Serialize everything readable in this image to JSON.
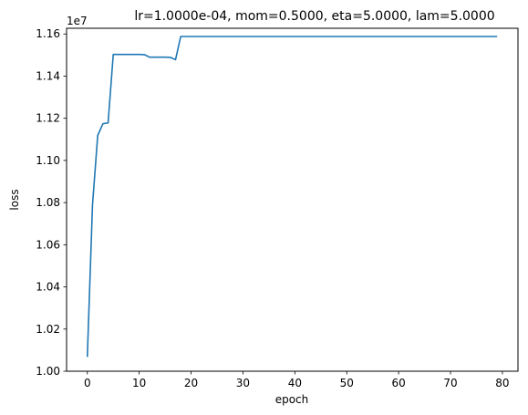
{
  "chart_data": {
    "type": "line",
    "title": "lr=1.0000e-04, mom=0.5000, eta=5.0000, lam=5.0000",
    "xlabel": "epoch",
    "ylabel": "loss",
    "y_offset_label": "1e7",
    "xlim": [
      -4,
      83
    ],
    "ylim": [
      1.0,
      1.1627
    ],
    "x_ticks": [
      0,
      10,
      20,
      30,
      40,
      50,
      60,
      70,
      80
    ],
    "y_ticks": [
      1.0,
      1.02,
      1.04,
      1.06,
      1.08,
      1.1,
      1.12,
      1.14,
      1.16
    ],
    "y_tick_labels": [
      "1.00",
      "1.02",
      "1.04",
      "1.06",
      "1.08",
      "1.10",
      "1.12",
      "1.14",
      "1.16"
    ],
    "grid": false,
    "colors": {
      "line": "#1f77b4"
    },
    "series": [
      {
        "x": [
          0,
          1,
          2,
          3,
          4,
          5,
          6,
          7,
          8,
          9,
          10,
          11,
          12,
          13,
          14,
          15,
          16,
          17,
          18,
          19,
          20,
          21,
          22,
          23,
          24,
          25,
          26,
          27,
          28,
          29,
          30,
          31,
          32,
          33,
          34,
          35,
          36,
          37,
          38,
          39,
          40,
          41,
          42,
          43,
          44,
          45,
          46,
          47,
          48,
          49,
          50,
          51,
          52,
          53,
          54,
          55,
          56,
          57,
          58,
          59,
          60,
          61,
          62,
          63,
          64,
          65,
          66,
          67,
          68,
          69,
          70,
          71,
          72,
          73,
          74,
          75,
          76,
          77,
          78,
          79
        ],
        "values": [
          1.0068,
          1.079,
          1.1118,
          1.1174,
          1.1178,
          1.1503,
          1.1503,
          1.1503,
          1.1503,
          1.1503,
          1.1503,
          1.1502,
          1.149,
          1.149,
          1.149,
          1.149,
          1.1489,
          1.1478,
          1.1588,
          1.1588,
          1.1588,
          1.1588,
          1.1588,
          1.1588,
          1.1588,
          1.1588,
          1.1588,
          1.1588,
          1.1588,
          1.1588,
          1.1588,
          1.1588,
          1.1588,
          1.1588,
          1.1588,
          1.1588,
          1.1588,
          1.1588,
          1.1588,
          1.1588,
          1.1588,
          1.1588,
          1.1588,
          1.1588,
          1.1588,
          1.1588,
          1.1588,
          1.1588,
          1.1588,
          1.1588,
          1.1588,
          1.1588,
          1.1588,
          1.1588,
          1.1588,
          1.1588,
          1.1588,
          1.1588,
          1.1588,
          1.1588,
          1.1588,
          1.1588,
          1.1588,
          1.1588,
          1.1588,
          1.1588,
          1.1588,
          1.1588,
          1.1588,
          1.1588,
          1.1588,
          1.1588,
          1.1588,
          1.1588,
          1.1588,
          1.1588,
          1.1588,
          1.1588,
          1.1588,
          1.1588
        ]
      }
    ]
  }
}
